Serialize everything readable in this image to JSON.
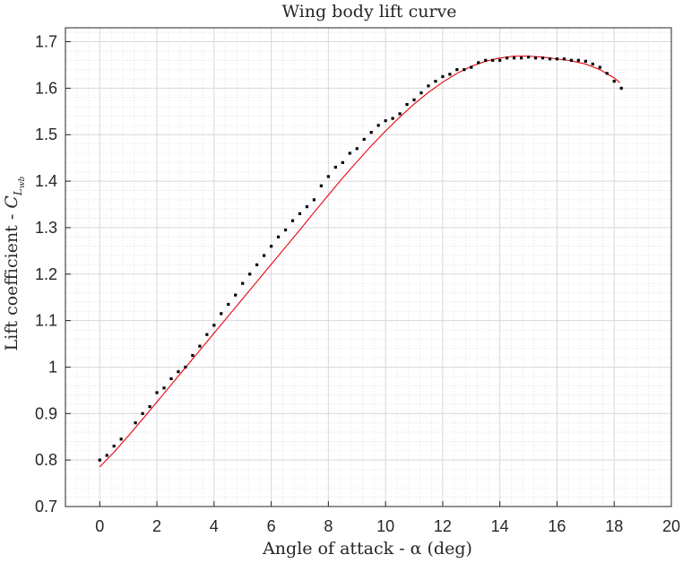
{
  "chart_data": {
    "type": "scatter",
    "title": "Wing body lift curve",
    "xlabel": "Angle of attack - α (deg)",
    "ylabel_prefix": "Lift coefficient - ",
    "ylabel_symbol": "C",
    "ylabel_subscript": "L",
    "ylabel_subsubscript": "wb",
    "xlim": [
      -1.2,
      20
    ],
    "ylim": [
      0.7,
      1.73
    ],
    "xticks": [
      0,
      2,
      4,
      6,
      8,
      10,
      12,
      14,
      16,
      18,
      20
    ],
    "xtick_labels": [
      "0",
      "2",
      "4",
      "6",
      "8",
      "10",
      "12",
      "14",
      "16",
      "18",
      "20"
    ],
    "yticks": [
      0.7,
      0.8,
      0.9,
      1.0,
      1.1,
      1.2,
      1.3,
      1.4,
      1.5,
      1.6,
      1.7
    ],
    "ytick_labels": [
      "0.7",
      "0.8",
      "0.9",
      "1",
      "1.1",
      "1.2",
      "1.3",
      "1.4",
      "1.5",
      "1.6",
      "1.7"
    ],
    "grid": true,
    "minor_grid": true,
    "colors": {
      "points": "#000000",
      "fit": "#e8000b",
      "grid": "#d9d9d9",
      "axis": "#262626"
    },
    "series": [
      {
        "kind": "points",
        "x": [
          0,
          0.25,
          0.5,
          0.75,
          1.25,
          1.5,
          1.75,
          2,
          2.25,
          2.5,
          2.75,
          3,
          3.25,
          3.5,
          3.75,
          4,
          4.25,
          4.5,
          4.75,
          5,
          5.25,
          5.5,
          5.75,
          6,
          6.25,
          6.5,
          6.75,
          7,
          7.25,
          7.5,
          7.75,
          8,
          8.25,
          8.5,
          8.75,
          9,
          9.25,
          9.5,
          9.75,
          10,
          10.25,
          10.5,
          10.75,
          11,
          11.25,
          11.5,
          11.75,
          12,
          12.25,
          12.5,
          12.75,
          13,
          13.25,
          13.5,
          13.75,
          14,
          14.25,
          14.5,
          14.75,
          15,
          15.25,
          15.5,
          15.75,
          16,
          16.25,
          16.5,
          16.75,
          17,
          17.25,
          17.5,
          17.75,
          18,
          18.25
        ],
        "y": [
          0.8,
          0.81,
          0.83,
          0.845,
          0.88,
          0.9,
          0.915,
          0.945,
          0.955,
          0.975,
          0.99,
          1.0,
          1.025,
          1.045,
          1.07,
          1.09,
          1.115,
          1.135,
          1.155,
          1.18,
          1.2,
          1.22,
          1.24,
          1.26,
          1.28,
          1.295,
          1.315,
          1.33,
          1.345,
          1.36,
          1.39,
          1.41,
          1.43,
          1.44,
          1.46,
          1.47,
          1.49,
          1.505,
          1.52,
          1.53,
          1.535,
          1.545,
          1.565,
          1.575,
          1.59,
          1.605,
          1.615,
          1.625,
          1.63,
          1.64,
          1.64,
          1.645,
          1.655,
          1.66,
          1.66,
          1.66,
          1.665,
          1.665,
          1.665,
          1.667,
          1.665,
          1.665,
          1.663,
          1.663,
          1.663,
          1.66,
          1.66,
          1.658,
          1.652,
          1.645,
          1.632,
          1.615,
          1.6
        ]
      },
      {
        "kind": "fit",
        "x": [
          0,
          0.5,
          1,
          1.5,
          2,
          2.5,
          3,
          3.5,
          4,
          4.5,
          5,
          5.5,
          6,
          6.5,
          7,
          7.5,
          8,
          8.5,
          9,
          9.5,
          10,
          10.5,
          11,
          11.5,
          12,
          12.5,
          13,
          13.5,
          14,
          14.5,
          15,
          15.5,
          16,
          16.5,
          17,
          17.5,
          18,
          18.2
        ],
        "y": [
          0.785,
          0.817,
          0.852,
          0.888,
          0.925,
          0.962,
          0.999,
          1.036,
          1.073,
          1.11,
          1.147,
          1.184,
          1.221,
          1.258,
          1.295,
          1.333,
          1.37,
          1.407,
          1.442,
          1.476,
          1.508,
          1.538,
          1.566,
          1.591,
          1.613,
          1.632,
          1.647,
          1.658,
          1.665,
          1.669,
          1.669,
          1.667,
          1.663,
          1.659,
          1.652,
          1.64,
          1.622,
          1.612
        ]
      }
    ]
  }
}
